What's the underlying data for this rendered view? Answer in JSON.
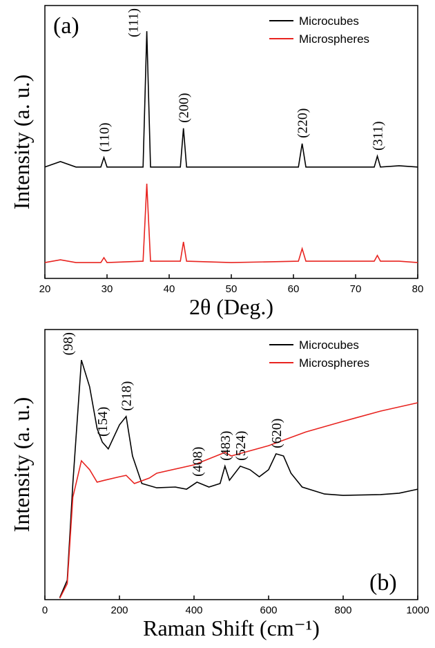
{
  "chart_data": [
    {
      "type": "line",
      "panel_label": "(a)",
      "xlabel": "2θ (Deg.)",
      "ylabel": "Intensity (a. u.)",
      "xlim": [
        20,
        80
      ],
      "xticks": [
        20,
        30,
        40,
        50,
        60,
        70,
        80
      ],
      "ylim": [
        0,
        100
      ],
      "legend": "upper right",
      "series": [
        {
          "name": "Microcubes",
          "color": "#000000",
          "x": [
            20,
            22.5,
            25,
            29,
            29.5,
            30,
            35.8,
            36.4,
            37,
            41.8,
            42.3,
            42.8,
            50,
            60.8,
            61.4,
            62,
            73,
            73.5,
            74,
            77,
            80
          ],
          "values": [
            40.8,
            42.8,
            40.8,
            40.8,
            44.3,
            40.8,
            40.8,
            90.6,
            40.8,
            40.8,
            55,
            40.8,
            40.8,
            40.8,
            49.4,
            40.8,
            40.8,
            44.8,
            40.8,
            41.3,
            40.8
          ]
        },
        {
          "name": "Microspheres",
          "color": "#e8231f",
          "x": [
            20,
            22.5,
            25,
            29,
            29.5,
            30,
            35.8,
            36.4,
            37,
            41.8,
            42.3,
            42.8,
            50,
            60.8,
            61.4,
            62,
            73,
            73.5,
            74,
            77,
            80
          ],
          "values": [
            5.8,
            6.8,
            5.8,
            5.8,
            7.6,
            5.8,
            6.3,
            34.7,
            6.3,
            6.3,
            13.4,
            6.3,
            5.8,
            6.3,
            10.9,
            6.3,
            6.3,
            8.4,
            6.3,
            6.3,
            5.8
          ]
        }
      ],
      "annotations": [
        {
          "text": "(110)",
          "x": 29.5
        },
        {
          "text": "(111)",
          "x": 36.4
        },
        {
          "text": "(200)",
          "x": 42.3
        },
        {
          "text": "(220)",
          "x": 61.4
        },
        {
          "text": "(311)",
          "x": 73.5
        }
      ]
    },
    {
      "type": "line",
      "panel_label": "(b)",
      "xlabel": "Raman Shift (cm⁻¹)",
      "ylabel": "Intensity (a. u.)",
      "xlim": [
        0,
        1000
      ],
      "xticks": [
        0,
        200,
        400,
        600,
        800,
        1000
      ],
      "ylim": [
        0,
        100
      ],
      "legend": "upper right",
      "series": [
        {
          "name": "Microcubes",
          "color": "#000000",
          "x": [
            40,
            60,
            75,
            98,
            120,
            140,
            154,
            170,
            200,
            218,
            235,
            260,
            300,
            350,
            380,
            408,
            440,
            470,
            483,
            495,
            524,
            550,
            575,
            600,
            620,
            640,
            660,
            690,
            750,
            800,
            900,
            950,
            1000
          ],
          "values": [
            0.8,
            7.2,
            43,
            88.7,
            78.8,
            63.4,
            58.3,
            55.8,
            64.7,
            67.8,
            53.2,
            43,
            41.4,
            41.7,
            40.9,
            43.5,
            41.7,
            43,
            49.4,
            44.2,
            49.4,
            48.1,
            45.5,
            48.1,
            54,
            53.2,
            46.8,
            41.7,
            39.1,
            38.6,
            38.9,
            39.4,
            40.9
          ]
        },
        {
          "name": "Microspheres",
          "color": "#e8231f",
          "x": [
            40,
            60,
            75,
            98,
            120,
            140,
            160,
            200,
            218,
            240,
            280,
            300,
            400,
            483,
            500,
            600,
            700,
            800,
            900,
            1000
          ],
          "values": [
            0.5,
            5.9,
            37.9,
            51.4,
            48.1,
            43.5,
            44.2,
            45.5,
            46,
            43,
            45,
            46.8,
            49.9,
            54.5,
            53.2,
            57,
            62.1,
            66,
            69.8,
            72.9
          ]
        }
      ],
      "annotations": [
        {
          "text": "(98)",
          "x": 98
        },
        {
          "text": "(154)",
          "x": 154
        },
        {
          "text": "(218)",
          "x": 218
        },
        {
          "text": "(408)",
          "x": 408
        },
        {
          "text": "(483)",
          "x": 483
        },
        {
          "text": "(524)",
          "x": 524
        },
        {
          "text": "(620)",
          "x": 620
        }
      ]
    }
  ]
}
